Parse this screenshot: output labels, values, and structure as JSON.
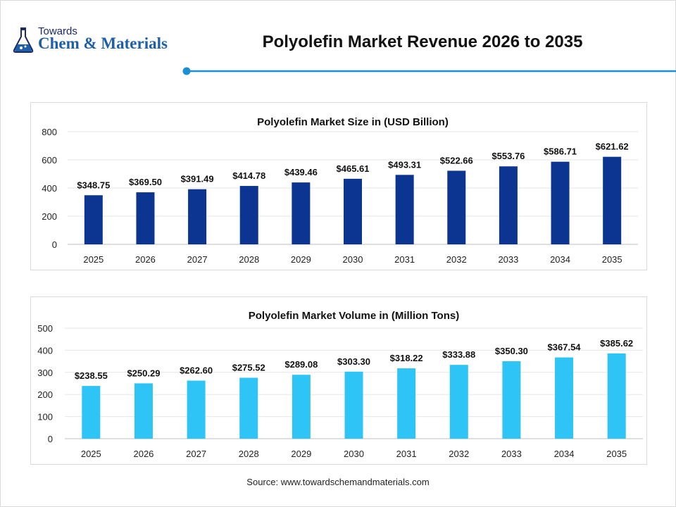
{
  "header": {
    "logo_top": "Towards",
    "logo_main": "Chem & Materials",
    "title": "Polyolefin Market Revenue 2026 to 2035",
    "accent_color": "#1a8fd1"
  },
  "chart_data": [
    {
      "type": "bar",
      "title": "Polyolefin Market Size in (USD Billion)",
      "categories": [
        "2025",
        "2026",
        "2027",
        "2028",
        "2029",
        "2030",
        "2031",
        "2032",
        "2033",
        "2034",
        "2035"
      ],
      "values": [
        348.75,
        369.5,
        391.49,
        414.78,
        439.46,
        465.61,
        493.31,
        522.66,
        553.76,
        586.71,
        621.62
      ],
      "labels": [
        "$348.75",
        "$369.50",
        "$391.49",
        "$414.78",
        "$439.46",
        "$465.61",
        "$493.31",
        "$522.66",
        "$553.76",
        "$586.71",
        "$621.62"
      ],
      "yticks": [
        "0",
        "200",
        "400",
        "600",
        "800"
      ],
      "ylim": [
        0,
        800
      ],
      "xlabel": "",
      "ylabel": "",
      "grid": true,
      "color": "#0b3590"
    },
    {
      "type": "bar",
      "title": "Polyolefin Market Volume in (Million Tons)",
      "categories": [
        "2025",
        "2026",
        "2027",
        "2028",
        "2029",
        "2030",
        "2031",
        "2032",
        "2033",
        "2034",
        "2035"
      ],
      "values": [
        238.55,
        250.29,
        262.6,
        275.52,
        289.08,
        303.3,
        318.22,
        333.88,
        350.3,
        367.54,
        385.62
      ],
      "labels": [
        "$238.55",
        "$250.29",
        "$262.60",
        "$275.52",
        "$289.08",
        "$303.30",
        "$318.22",
        "$333.88",
        "$350.30",
        "$367.54",
        "$385.62"
      ],
      "yticks": [
        "0",
        "100",
        "200",
        "300",
        "400",
        "500"
      ],
      "ylim": [
        0,
        500
      ],
      "xlabel": "",
      "ylabel": "",
      "grid": true,
      "color": "#2ec4f5"
    }
  ],
  "footer": {
    "source": "Source: www.towardschemandmaterials.com"
  }
}
